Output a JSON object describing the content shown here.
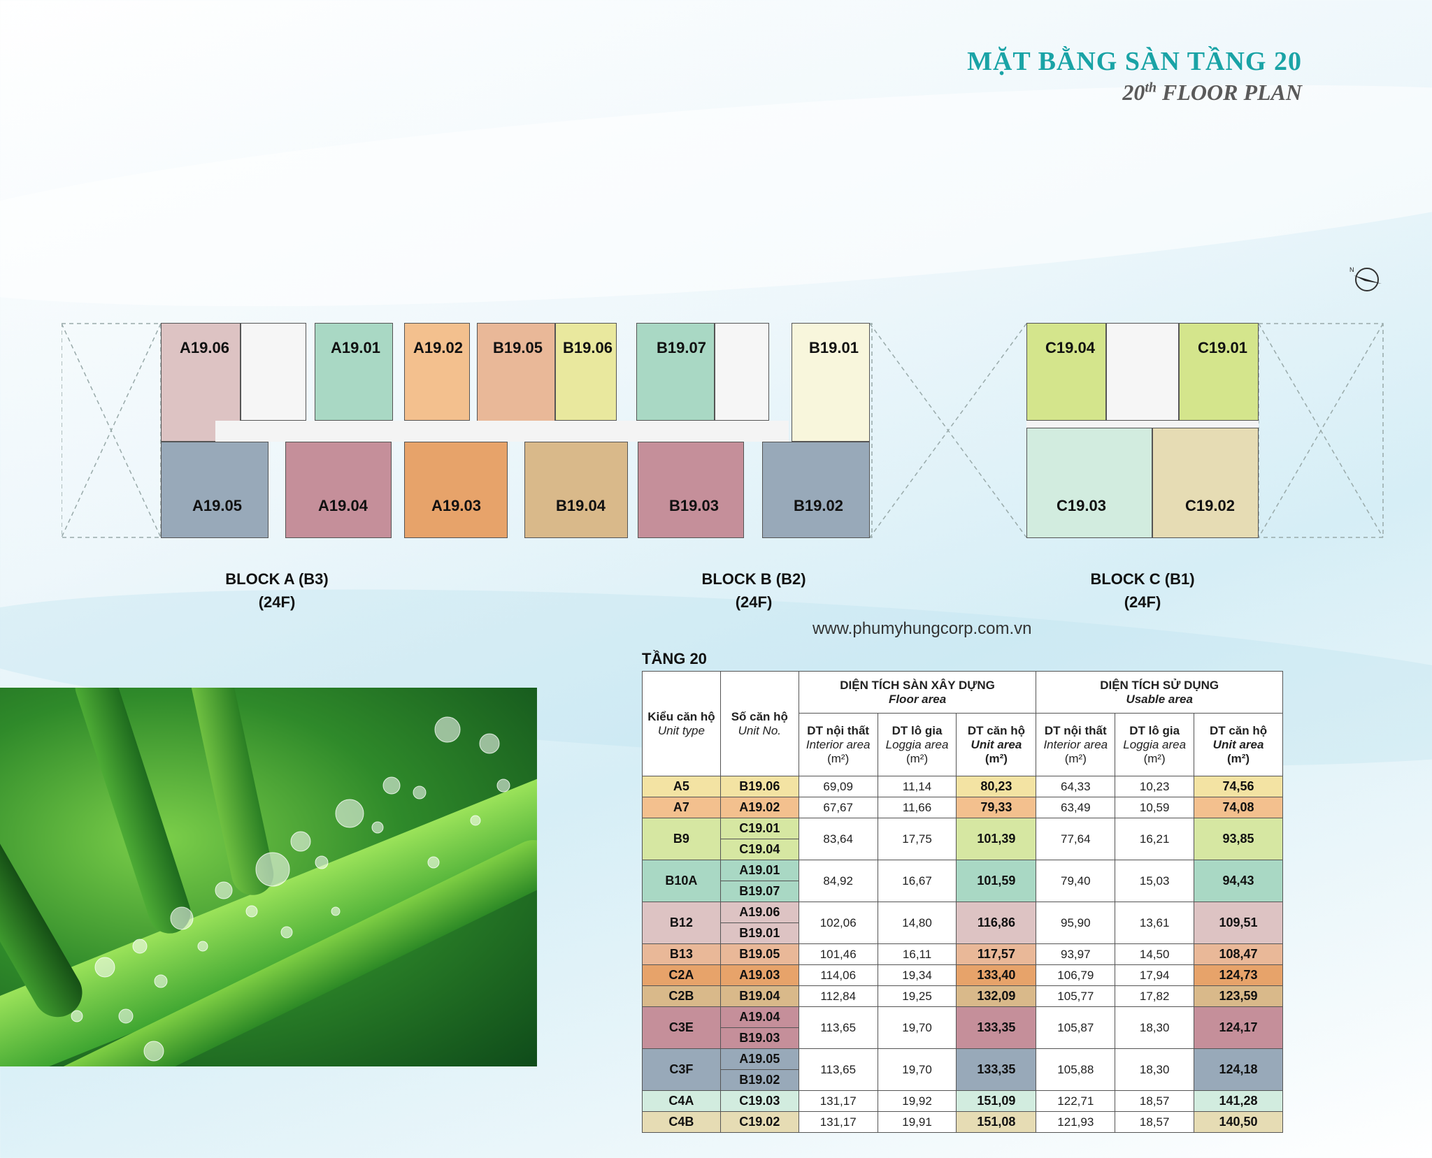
{
  "title_vn": "MẶT BẰNG SÀN TẦNG 20",
  "title_en_ordinal": "20",
  "title_en_suffix": "th",
  "title_en_rest": " FLOOR PLAN",
  "url": "www.phumyhungcorp.com.vn",
  "blocks": {
    "a": {
      "name": "BLOCK A (B3)",
      "floors": "(24F)"
    },
    "b": {
      "name": "BLOCK B (B2)",
      "floors": "(24F)"
    },
    "c": {
      "name": "BLOCK C (B1)",
      "floors": "(24F)"
    }
  },
  "units": {
    "a1906": "A19.06",
    "a1901": "A19.01",
    "a1902": "A19.02",
    "a1905": "A19.05",
    "a1904": "A19.04",
    "a1903": "A19.03",
    "b1905": "B19.05",
    "b1906": "B19.06",
    "b1907": "B19.07",
    "b1901": "B19.01",
    "b1904": "B19.04",
    "b1903": "B19.03",
    "b1902": "B19.02",
    "c1904": "C19.04",
    "c1901": "C19.01",
    "c1903": "C19.03",
    "c1902": "C19.02"
  },
  "colors": {
    "A5": "#f3e3a3",
    "A7": "#f3c08e",
    "B9": "#d6e7a2",
    "B10A": "#a9d8c4",
    "B12": "#ddc3c3",
    "B13": "#e9b898",
    "C2A": "#e7a36a",
    "C2B": "#d9b98a",
    "C3E": "#c58f9a",
    "C3F": "#98a9b9",
    "C4A": "#d2ecdf",
    "C4B": "#e6dcb4",
    "plan_b1906": "#e9e89e",
    "plan_b1901": "#f8f6dc",
    "plan_c1904": "#d4e58c",
    "plan_c1901": "#d4e58c",
    "brand_teal": "#1aa3a6"
  },
  "table": {
    "floor_label": "TẦNG 20",
    "col_type": "Kiểu căn hộ",
    "col_type_en": "Unit type",
    "col_no": "Số căn hộ",
    "col_no_en": "Unit No.",
    "group1": "DIỆN TÍCH SÀN XÂY DỰNG",
    "group1_en": "Floor area",
    "group2": "DIỆN TÍCH SỬ DỤNG",
    "group2_en": "Usable area",
    "interior": "DT nội thất",
    "interior_en": "Interior area",
    "loggia": "DT lô gia",
    "loggia_en": "Loggia area",
    "unit": "DT căn hộ",
    "unit_en": "Unit area",
    "m2": "(m²)",
    "rows": [
      {
        "type": "A5",
        "nos": [
          "B19.06"
        ],
        "fi": "69,09",
        "fl": "11,14",
        "fu": "80,23",
        "ui": "64,33",
        "ul": "10,23",
        "uu": "74,56"
      },
      {
        "type": "A7",
        "nos": [
          "A19.02"
        ],
        "fi": "67,67",
        "fl": "11,66",
        "fu": "79,33",
        "ui": "63,49",
        "ul": "10,59",
        "uu": "74,08"
      },
      {
        "type": "B9",
        "nos": [
          "C19.01",
          "C19.04"
        ],
        "fi": "83,64",
        "fl": "17,75",
        "fu": "101,39",
        "ui": "77,64",
        "ul": "16,21",
        "uu": "93,85"
      },
      {
        "type": "B10A",
        "nos": [
          "A19.01",
          "B19.07"
        ],
        "fi": "84,92",
        "fl": "16,67",
        "fu": "101,59",
        "ui": "79,40",
        "ul": "15,03",
        "uu": "94,43"
      },
      {
        "type": "B12",
        "nos": [
          "A19.06",
          "B19.01"
        ],
        "fi": "102,06",
        "fl": "14,80",
        "fu": "116,86",
        "ui": "95,90",
        "ul": "13,61",
        "uu": "109,51"
      },
      {
        "type": "B13",
        "nos": [
          "B19.05"
        ],
        "fi": "101,46",
        "fl": "16,11",
        "fu": "117,57",
        "ui": "93,97",
        "ul": "14,50",
        "uu": "108,47"
      },
      {
        "type": "C2A",
        "nos": [
          "A19.03"
        ],
        "fi": "114,06",
        "fl": "19,34",
        "fu": "133,40",
        "ui": "106,79",
        "ul": "17,94",
        "uu": "124,73"
      },
      {
        "type": "C2B",
        "nos": [
          "B19.04"
        ],
        "fi": "112,84",
        "fl": "19,25",
        "fu": "132,09",
        "ui": "105,77",
        "ul": "17,82",
        "uu": "123,59"
      },
      {
        "type": "C3E",
        "nos": [
          "A19.04",
          "B19.03"
        ],
        "fi": "113,65",
        "fl": "19,70",
        "fu": "133,35",
        "ui": "105,87",
        "ul": "18,30",
        "uu": "124,17"
      },
      {
        "type": "C3F",
        "nos": [
          "A19.05",
          "B19.02"
        ],
        "fi": "113,65",
        "fl": "19,70",
        "fu": "133,35",
        "ui": "105,88",
        "ul": "18,30",
        "uu": "124,18"
      },
      {
        "type": "C4A",
        "nos": [
          "C19.03"
        ],
        "fi": "131,17",
        "fl": "19,92",
        "fu": "151,09",
        "ui": "122,71",
        "ul": "18,57",
        "uu": "141,28"
      },
      {
        "type": "C4B",
        "nos": [
          "C19.02"
        ],
        "fi": "131,17",
        "fl": "19,91",
        "fu": "151,08",
        "ui": "121,93",
        "ul": "18,57",
        "uu": "140,50"
      }
    ]
  }
}
